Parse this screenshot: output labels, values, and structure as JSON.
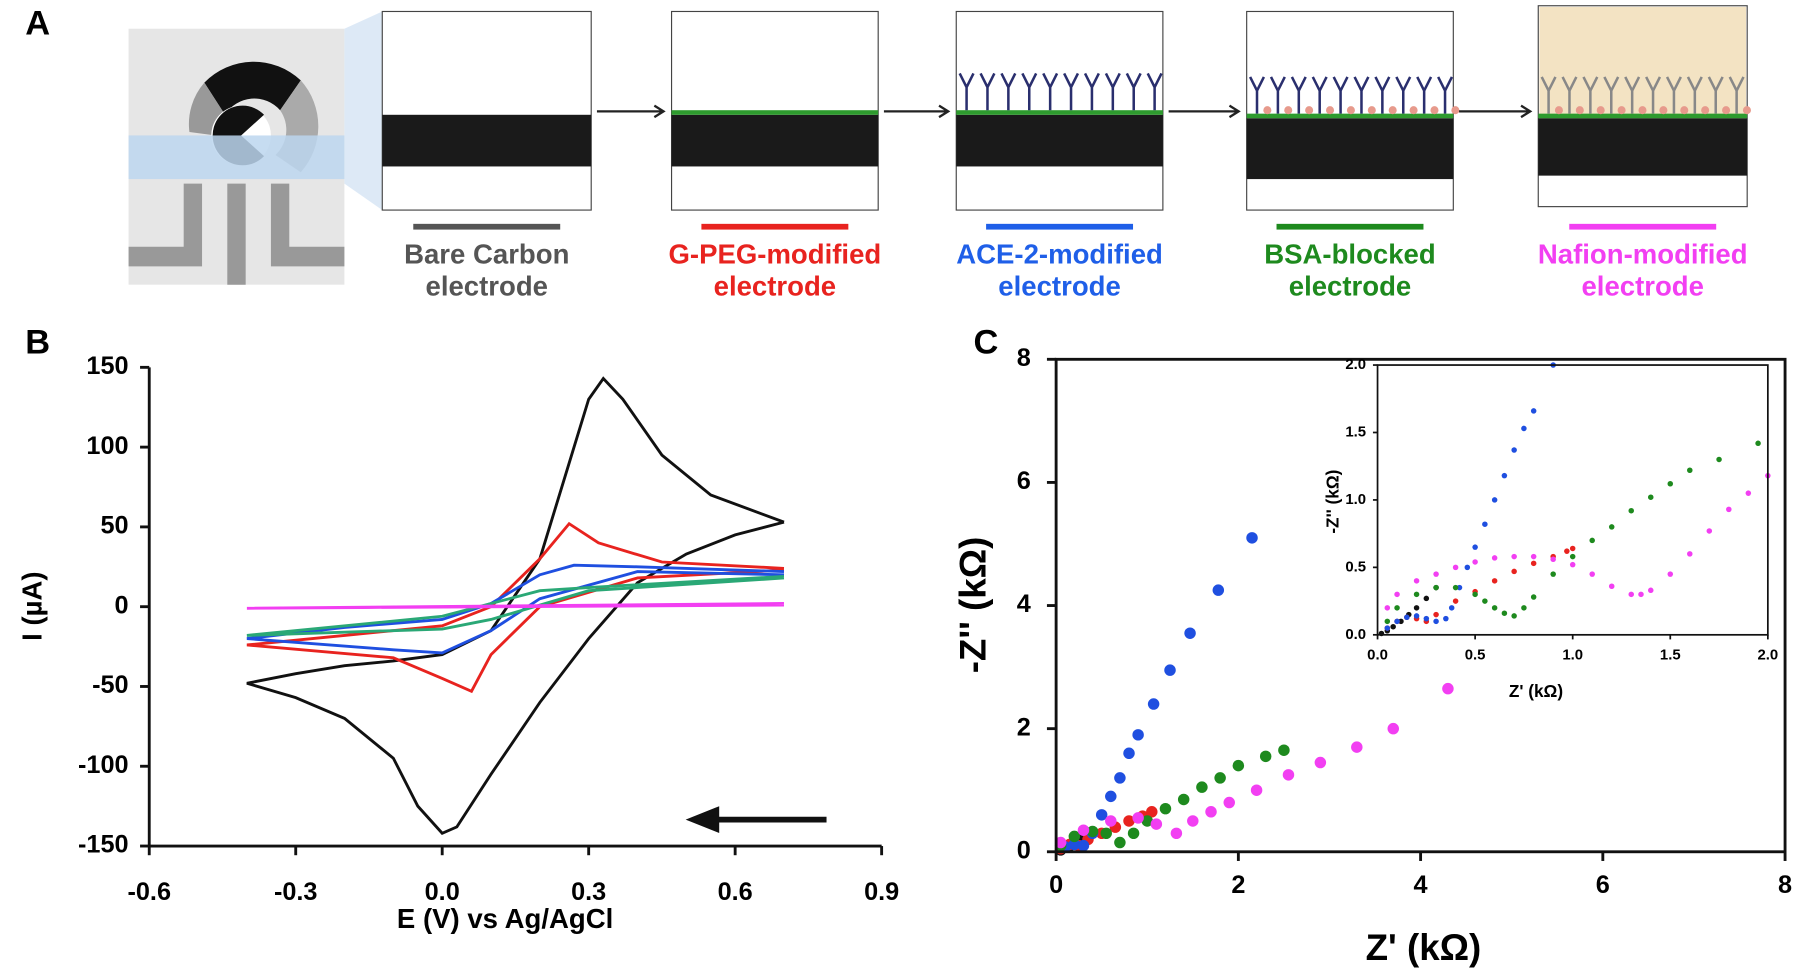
{
  "panel_labels": [
    "A",
    "B",
    "C"
  ],
  "panel_a": {
    "steps": [
      {
        "label": [
          "Bare Carbon",
          "electrode"
        ],
        "color": "#555555"
      },
      {
        "label": [
          "G-PEG-modified",
          "electrode"
        ],
        "color": "#e8231f"
      },
      {
        "label": [
          "ACE-2-modified",
          "electrode"
        ],
        "color": "#1f5fe8"
      },
      {
        "label": [
          "BSA-blocked",
          "electrode"
        ],
        "color": "#1e8a1e"
      },
      {
        "label": [
          "Nafion-modified",
          "electrode"
        ],
        "color": "#f23ff2"
      }
    ]
  },
  "chart_data": [
    {
      "type": "line",
      "x_label": "E (V) vs Ag/AgCl",
      "y_label": "I  (µA)",
      "xlim": [
        -0.6,
        0.9
      ],
      "xticks": [
        -0.6,
        -0.3,
        {
          "value": 0,
          "label": "0.0"
        },
        0.3,
        0.6,
        0.9
      ],
      "ylim": [
        -150,
        150
      ],
      "yticks": [
        -150,
        -100,
        -50,
        0,
        50,
        100,
        150
      ],
      "series": [
        {
          "color": "#111111",
          "x": [
            0.7,
            0.6,
            0.5,
            0.4,
            0.3,
            0.2,
            0.1,
            0.03,
            0.0,
            -0.05,
            -0.1,
            -0.2,
            -0.3,
            -0.4,
            -0.3,
            -0.2,
            -0.1,
            0.0,
            0.1,
            0.2,
            0.25,
            0.3,
            0.33,
            0.37,
            0.45,
            0.55,
            0.7
          ],
          "values": [
            53,
            45,
            33,
            15,
            -20,
            -60,
            -105,
            -138,
            -142,
            -125,
            -95,
            -70,
            -57,
            -48,
            -42,
            -37,
            -34,
            -30,
            -15,
            30,
            80,
            130,
            143,
            130,
            95,
            70,
            53
          ]
        },
        {
          "color": "#e8231f",
          "x": [
            0.7,
            0.4,
            0.2,
            0.1,
            0.06,
            0.0,
            -0.1,
            -0.4,
            -0.2,
            0.0,
            0.1,
            0.2,
            0.26,
            0.32,
            0.45,
            0.7
          ],
          "values": [
            23,
            18,
            0,
            -30,
            -53,
            -45,
            -32,
            -24,
            -18,
            -12,
            0,
            30,
            52,
            40,
            28,
            24
          ]
        },
        {
          "color": "#1f4fe0",
          "x": [
            0.7,
            0.4,
            0.2,
            0.1,
            0.0,
            -0.1,
            -0.4,
            -0.2,
            0.0,
            0.1,
            0.2,
            0.27,
            0.4,
            0.7
          ],
          "values": [
            20,
            22,
            5,
            -15,
            -29,
            -27,
            -20,
            -13,
            -8,
            2,
            20,
            26,
            25,
            22
          ]
        },
        {
          "color": "#2aa876",
          "x": [
            0.7,
            0.3,
            0.1,
            0.0,
            -0.4,
            0.0,
            0.2,
            0.3,
            0.7
          ],
          "values": [
            18,
            10,
            -8,
            -14,
            -18,
            -6,
            10,
            12,
            19
          ]
        },
        {
          "color": "#f23ff2",
          "x": [
            0.7,
            -0.4,
            0.7
          ],
          "values": [
            1,
            -1,
            2
          ]
        }
      ]
    },
    {
      "type": "scatter",
      "x_label": "Z' (kΩ)",
      "y_label": "-Z'' (kΩ)",
      "xlim": [
        0,
        8
      ],
      "xticks": [
        0,
        2,
        4,
        6,
        8
      ],
      "ylim": [
        0,
        8
      ],
      "yticks": [
        0,
        2,
        4,
        6,
        8
      ],
      "series": [
        {
          "color": "#111111",
          "x": [
            0.05,
            0.15,
            0.25,
            0.35
          ],
          "values": [
            0.03,
            0.1,
            0.2,
            0.3
          ]
        },
        {
          "color": "#e8231f",
          "x": [
            0.05,
            0.15,
            0.25,
            0.35,
            0.5,
            0.65,
            0.8,
            0.95,
            1.05
          ],
          "values": [
            0.05,
            0.12,
            0.1,
            0.2,
            0.3,
            0.4,
            0.5,
            0.58,
            0.65
          ]
        },
        {
          "color": "#1f4fe0",
          "x": [
            0.1,
            0.2,
            0.3,
            0.4,
            0.5,
            0.6,
            0.7,
            0.8,
            0.9,
            1.07,
            1.25,
            1.47,
            1.78,
            2.15
          ],
          "values": [
            0.08,
            0.12,
            0.1,
            0.3,
            0.6,
            0.9,
            1.2,
            1.6,
            1.9,
            2.4,
            2.95,
            3.55,
            4.25,
            5.1
          ]
        },
        {
          "color": "#1e8a1e",
          "x": [
            0.05,
            0.2,
            0.4,
            0.55,
            0.7,
            0.85,
            1.0,
            1.2,
            1.4,
            1.6,
            1.8,
            2.0,
            2.3,
            2.5
          ],
          "values": [
            0.1,
            0.25,
            0.33,
            0.3,
            0.15,
            0.3,
            0.5,
            0.7,
            0.85,
            1.05,
            1.2,
            1.4,
            1.55,
            1.65
          ]
        },
        {
          "color": "#f23ff2",
          "x": [
            0.05,
            0.3,
            0.6,
            0.9,
            1.1,
            1.32,
            1.5,
            1.7,
            1.9,
            2.2,
            2.55,
            2.9,
            3.3,
            3.7,
            4.3
          ],
          "values": [
            0.15,
            0.35,
            0.5,
            0.55,
            0.45,
            0.3,
            0.5,
            0.65,
            0.8,
            1.0,
            1.25,
            1.45,
            1.7,
            2.0,
            2.65
          ]
        }
      ]
    },
    {
      "type": "scatter",
      "x_label": "Z' (kΩ)",
      "y_label": "-Z'' (kΩ)",
      "xlim": [
        0,
        2
      ],
      "xticks": [
        {
          "value": 0,
          "label": "0.0"
        },
        0.5,
        {
          "value": 1,
          "label": "1.0"
        },
        1.5,
        {
          "value": 2,
          "label": "2.0"
        }
      ],
      "ylim": [
        0,
        2
      ],
      "yticks": [
        {
          "value": 0,
          "label": "0.0"
        },
        0.5,
        {
          "value": 1,
          "label": "1.0"
        },
        1.5,
        {
          "value": 2,
          "label": "2.0"
        }
      ],
      "series": [
        {
          "color": "#111111",
          "x": [
            0.02,
            0.05,
            0.08,
            0.12,
            0.16,
            0.2,
            0.25,
            0.3
          ],
          "values": [
            0.01,
            0.03,
            0.06,
            0.1,
            0.15,
            0.2,
            0.27,
            0.35
          ]
        },
        {
          "color": "#e8231f",
          "x": [
            0.05,
            0.1,
            0.15,
            0.2,
            0.25,
            0.3,
            0.4,
            0.5,
            0.6,
            0.7,
            0.8,
            0.9,
            0.97,
            1.0
          ],
          "values": [
            0.05,
            0.1,
            0.13,
            0.12,
            0.1,
            0.15,
            0.25,
            0.32,
            0.4,
            0.47,
            0.53,
            0.58,
            0.62,
            0.64
          ]
        },
        {
          "color": "#1f4fe0",
          "x": [
            0.05,
            0.1,
            0.15,
            0.2,
            0.25,
            0.3,
            0.35,
            0.38,
            0.42,
            0.46,
            0.5,
            0.55,
            0.6,
            0.65,
            0.7,
            0.75,
            0.8,
            0.9
          ],
          "values": [
            0.05,
            0.1,
            0.13,
            0.14,
            0.12,
            0.1,
            0.12,
            0.2,
            0.35,
            0.5,
            0.65,
            0.82,
            1.0,
            1.18,
            1.37,
            1.53,
            1.66,
            2.0
          ]
        },
        {
          "color": "#1e8a1e",
          "x": [
            0.05,
            0.1,
            0.2,
            0.3,
            0.4,
            0.5,
            0.55,
            0.6,
            0.65,
            0.7,
            0.75,
            0.8,
            0.9,
            1.0,
            1.1,
            1.2,
            1.3,
            1.4,
            1.5,
            1.6,
            1.75,
            1.95
          ],
          "values": [
            0.1,
            0.2,
            0.3,
            0.35,
            0.35,
            0.3,
            0.25,
            0.2,
            0.16,
            0.14,
            0.2,
            0.28,
            0.45,
            0.58,
            0.7,
            0.8,
            0.92,
            1.02,
            1.12,
            1.22,
            1.3,
            1.42
          ]
        },
        {
          "color": "#f23ff2",
          "x": [
            0.05,
            0.1,
            0.2,
            0.3,
            0.4,
            0.5,
            0.6,
            0.7,
            0.8,
            0.9,
            1.0,
            1.1,
            1.2,
            1.3,
            1.35,
            1.4,
            1.5,
            1.6,
            1.7,
            1.8,
            1.9,
            2.0
          ],
          "values": [
            0.2,
            0.3,
            0.4,
            0.45,
            0.5,
            0.54,
            0.57,
            0.58,
            0.58,
            0.56,
            0.52,
            0.45,
            0.36,
            0.3,
            0.3,
            0.33,
            0.45,
            0.6,
            0.77,
            0.93,
            1.05,
            1.18
          ]
        }
      ]
    }
  ]
}
